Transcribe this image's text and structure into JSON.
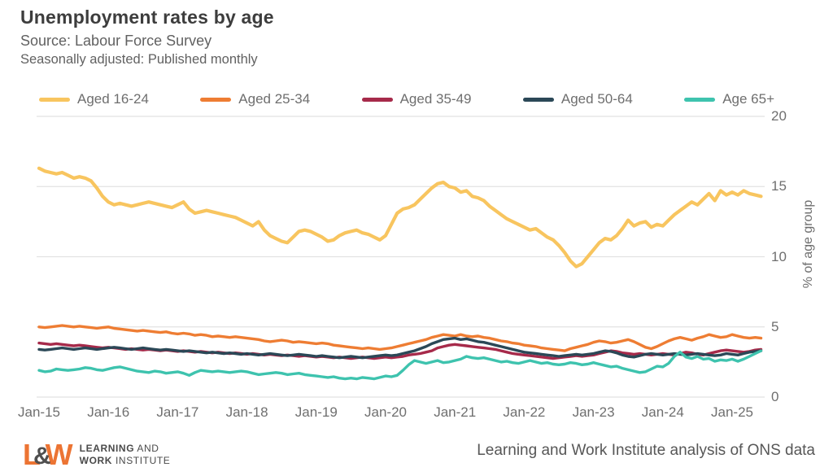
{
  "header": {
    "title": "Unemployment rates by age",
    "source": "Source: Labour Force Survey",
    "note": "Seasonally adjusted: Published monthly"
  },
  "colors": {
    "grid": "#e2e2e2",
    "tick_text": "#6f6f6f",
    "title_text": "#3d3d3d",
    "logo_orange": "#ec7433",
    "logo_gray": "#4f4f4f"
  },
  "chart_data": {
    "type": "line",
    "title": "Unemployment rates by age",
    "x_range": "Jan-2015 to Jun-2025, monthly",
    "categories": [
      "Jan-15",
      "Jan-16",
      "Jan-17",
      "Jan-18",
      "Jan-19",
      "Jan-20",
      "Jan-21",
      "Jan-22",
      "Jan-23",
      "Jan-24",
      "Jan-25"
    ],
    "ylabel": "% of age group",
    "yticks": [
      0,
      5,
      10,
      15,
      20
    ],
    "ylim": [
      0,
      20
    ],
    "grid": "horizontal",
    "legend_position": "top",
    "series": [
      {
        "name": "Aged 16-24",
        "color": "#F8C55F",
        "values": [
          16.3,
          16.1,
          16.0,
          15.9,
          16.0,
          15.8,
          15.6,
          15.7,
          15.6,
          15.4,
          14.9,
          14.3,
          13.9,
          13.7,
          13.8,
          13.7,
          13.6,
          13.7,
          13.8,
          13.9,
          13.8,
          13.7,
          13.6,
          13.5,
          13.7,
          13.9,
          13.4,
          13.1,
          13.2,
          13.3,
          13.2,
          13.1,
          13.0,
          12.9,
          12.8,
          12.6,
          12.4,
          12.2,
          12.5,
          11.9,
          11.5,
          11.3,
          11.1,
          11.0,
          11.4,
          11.8,
          11.9,
          11.8,
          11.6,
          11.4,
          11.1,
          11.2,
          11.5,
          11.7,
          11.8,
          11.9,
          11.7,
          11.6,
          11.4,
          11.2,
          11.5,
          12.3,
          13.1,
          13.4,
          13.5,
          13.7,
          14.1,
          14.5,
          14.9,
          15.2,
          15.3,
          15.0,
          14.9,
          14.6,
          14.7,
          14.3,
          14.2,
          14.0,
          13.6,
          13.3,
          13.0,
          12.7,
          12.5,
          12.3,
          12.1,
          11.9,
          12.0,
          11.7,
          11.4,
          11.2,
          10.8,
          10.3,
          9.7,
          9.3,
          9.5,
          10.0,
          10.5,
          11.0,
          11.3,
          11.2,
          11.5,
          12.0,
          12.6,
          12.2,
          12.4,
          12.5,
          12.1,
          12.3,
          12.2,
          12.6,
          13.0,
          13.3,
          13.6,
          13.9,
          13.7,
          14.1,
          14.5,
          14.0,
          14.7,
          14.4,
          14.6,
          14.4,
          14.7,
          14.5,
          14.4,
          14.3
        ]
      },
      {
        "name": "Aged 25-34",
        "color": "#EE7D33",
        "values": [
          5.0,
          4.95,
          5.0,
          5.05,
          5.1,
          5.05,
          5.0,
          5.05,
          5.0,
          4.95,
          4.9,
          4.95,
          5.0,
          4.9,
          4.85,
          4.8,
          4.75,
          4.7,
          4.75,
          4.7,
          4.65,
          4.6,
          4.65,
          4.55,
          4.5,
          4.55,
          4.5,
          4.4,
          4.45,
          4.4,
          4.3,
          4.35,
          4.3,
          4.25,
          4.3,
          4.25,
          4.2,
          4.15,
          4.1,
          4.0,
          3.95,
          4.0,
          4.05,
          4.0,
          3.9,
          3.95,
          3.9,
          3.85,
          3.8,
          3.85,
          3.8,
          3.7,
          3.65,
          3.6,
          3.55,
          3.5,
          3.45,
          3.5,
          3.45,
          3.4,
          3.45,
          3.5,
          3.6,
          3.7,
          3.8,
          3.9,
          4.0,
          4.1,
          4.25,
          4.35,
          4.45,
          4.4,
          4.35,
          4.45,
          4.35,
          4.3,
          4.35,
          4.25,
          4.2,
          4.1,
          4.0,
          3.95,
          3.85,
          3.8,
          3.7,
          3.65,
          3.6,
          3.5,
          3.45,
          3.4,
          3.35,
          3.3,
          3.45,
          3.55,
          3.65,
          3.75,
          3.9,
          4.0,
          3.95,
          3.85,
          3.9,
          4.0,
          4.1,
          3.95,
          3.75,
          3.55,
          3.45,
          3.6,
          3.8,
          4.0,
          4.15,
          4.25,
          4.15,
          4.05,
          4.2,
          4.3,
          4.45,
          4.35,
          4.25,
          4.3,
          4.45,
          4.35,
          4.25,
          4.2,
          4.25,
          4.2
        ]
      },
      {
        "name": "Aged 35-49",
        "color": "#A62A4A",
        "values": [
          3.85,
          3.8,
          3.75,
          3.8,
          3.75,
          3.7,
          3.65,
          3.7,
          3.65,
          3.6,
          3.55,
          3.5,
          3.55,
          3.5,
          3.45,
          3.4,
          3.45,
          3.4,
          3.35,
          3.4,
          3.35,
          3.3,
          3.35,
          3.3,
          3.25,
          3.3,
          3.25,
          3.2,
          3.25,
          3.2,
          3.15,
          3.2,
          3.15,
          3.1,
          3.15,
          3.1,
          3.05,
          3.1,
          3.05,
          3.0,
          3.05,
          3.0,
          2.95,
          3.0,
          2.95,
          2.9,
          2.95,
          2.9,
          2.85,
          2.9,
          2.85,
          2.8,
          2.85,
          2.8,
          2.75,
          2.8,
          2.85,
          2.8,
          2.75,
          2.8,
          2.85,
          2.8,
          2.85,
          2.9,
          3.0,
          3.05,
          3.1,
          3.2,
          3.3,
          3.5,
          3.6,
          3.7,
          3.75,
          3.7,
          3.65,
          3.6,
          3.55,
          3.5,
          3.45,
          3.4,
          3.3,
          3.2,
          3.1,
          3.05,
          3.0,
          2.95,
          2.9,
          2.85,
          2.8,
          2.75,
          2.8,
          2.85,
          2.9,
          2.95,
          2.9,
          2.95,
          3.0,
          3.1,
          3.2,
          3.3,
          3.25,
          3.15,
          3.1,
          3.05,
          3.1,
          3.05,
          3.0,
          3.05,
          3.1,
          3.05,
          3.0,
          3.1,
          3.2,
          3.15,
          3.05,
          3.0,
          3.1,
          3.2,
          3.3,
          3.35,
          3.3,
          3.25,
          3.2,
          3.25,
          3.35,
          3.4
        ]
      },
      {
        "name": "Aged 50-64",
        "color": "#2B4857",
        "values": [
          3.4,
          3.35,
          3.4,
          3.45,
          3.5,
          3.45,
          3.4,
          3.45,
          3.5,
          3.45,
          3.4,
          3.45,
          3.5,
          3.55,
          3.5,
          3.45,
          3.4,
          3.45,
          3.5,
          3.45,
          3.4,
          3.35,
          3.4,
          3.35,
          3.3,
          3.25,
          3.3,
          3.25,
          3.2,
          3.15,
          3.2,
          3.15,
          3.1,
          3.15,
          3.1,
          3.05,
          3.1,
          3.05,
          3.0,
          3.05,
          3.1,
          3.05,
          3.0,
          2.95,
          3.0,
          3.05,
          3.0,
          2.95,
          2.9,
          2.95,
          2.9,
          2.85,
          2.8,
          2.85,
          2.9,
          2.85,
          2.8,
          2.85,
          2.9,
          2.95,
          3.0,
          2.95,
          3.0,
          3.1,
          3.2,
          3.3,
          3.45,
          3.6,
          3.8,
          3.95,
          4.1,
          4.15,
          4.2,
          4.1,
          4.15,
          4.05,
          3.95,
          3.9,
          3.8,
          3.7,
          3.6,
          3.5,
          3.4,
          3.3,
          3.2,
          3.15,
          3.1,
          3.05,
          3.0,
          2.95,
          2.9,
          2.95,
          3.0,
          3.05,
          3.0,
          3.05,
          3.1,
          3.2,
          3.3,
          3.25,
          3.15,
          3.0,
          2.9,
          2.85,
          2.95,
          3.05,
          3.1,
          3.05,
          3.0,
          3.05,
          3.1,
          3.05,
          3.0,
          3.05,
          3.1,
          3.05,
          3.0,
          2.95,
          3.0,
          3.1,
          3.05,
          3.0,
          3.1,
          3.2,
          3.25,
          3.3
        ]
      },
      {
        "name": "Age 65+",
        "color": "#3EC3AE",
        "values": [
          1.9,
          1.8,
          1.85,
          2.0,
          1.95,
          1.9,
          1.95,
          2.0,
          2.1,
          2.05,
          1.95,
          1.9,
          2.0,
          2.1,
          2.15,
          2.05,
          1.95,
          1.85,
          1.8,
          1.75,
          1.85,
          1.8,
          1.7,
          1.75,
          1.8,
          1.7,
          1.55,
          1.75,
          1.9,
          1.85,
          1.8,
          1.85,
          1.8,
          1.75,
          1.8,
          1.85,
          1.8,
          1.7,
          1.6,
          1.65,
          1.7,
          1.75,
          1.7,
          1.6,
          1.65,
          1.7,
          1.6,
          1.55,
          1.5,
          1.45,
          1.4,
          1.45,
          1.35,
          1.3,
          1.35,
          1.3,
          1.4,
          1.35,
          1.3,
          1.4,
          1.5,
          1.45,
          1.55,
          1.9,
          2.3,
          2.6,
          2.5,
          2.4,
          2.5,
          2.6,
          2.45,
          2.5,
          2.6,
          2.7,
          2.9,
          2.8,
          2.75,
          2.8,
          2.7,
          2.6,
          2.5,
          2.55,
          2.45,
          2.4,
          2.5,
          2.6,
          2.5,
          2.4,
          2.45,
          2.35,
          2.3,
          2.35,
          2.45,
          2.4,
          2.3,
          2.35,
          2.45,
          2.35,
          2.25,
          2.15,
          2.2,
          2.05,
          1.95,
          1.85,
          1.75,
          1.8,
          2.0,
          2.2,
          2.15,
          2.4,
          2.9,
          3.2,
          2.85,
          2.75,
          2.9,
          2.7,
          2.75,
          2.55,
          2.65,
          2.6,
          2.7,
          2.55,
          2.7,
          2.9,
          3.1,
          3.3
        ]
      }
    ]
  },
  "footer": {
    "credit": "Learning and Work Institute analysis of ONS data",
    "logo": {
      "mark_l": "L",
      "mark_amp": "&",
      "mark_w": "W",
      "line1_bold": "LEARNING",
      "line1_rest": " AND",
      "line2_bold": "WORK",
      "line2_rest": " INSTITUTE"
    }
  }
}
